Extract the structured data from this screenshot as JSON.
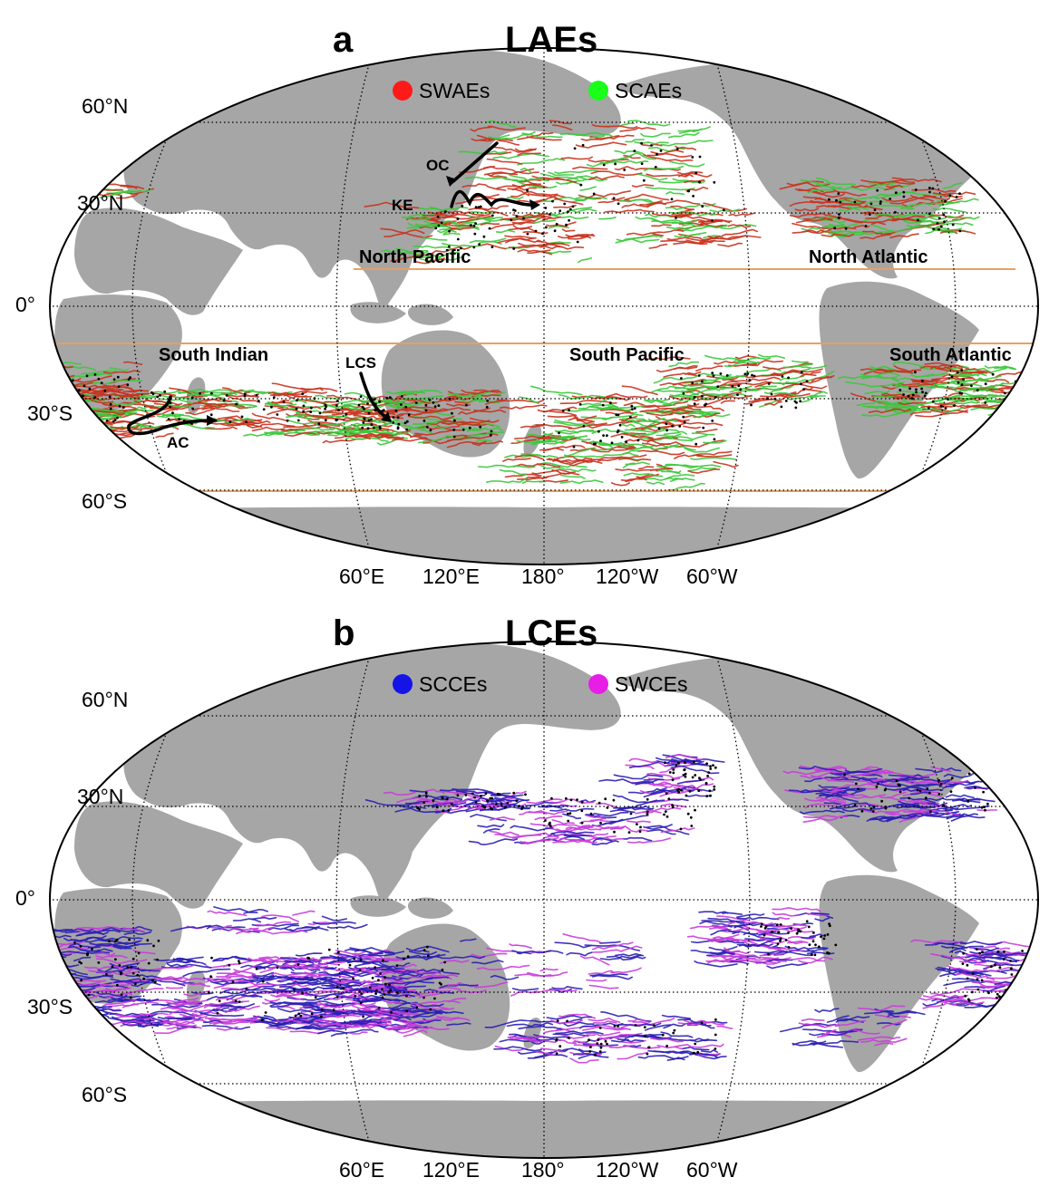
{
  "panels": [
    {
      "letter": "a",
      "title": "LAEs",
      "legend": [
        {
          "label": "SWAEs",
          "color": "#ff1a1a"
        },
        {
          "label": "SCAEs",
          "color": "#1aff1a"
        }
      ],
      "lat_labels": [
        "60°N",
        "30°N",
        "0°",
        "30°S",
        "60°S"
      ],
      "lon_labels": [
        "60°E",
        "120°E",
        "180°",
        "120°W",
        "60°W"
      ],
      "regions": [
        "North Pacific",
        "North Atlantic",
        "South Indian",
        "South Pacific",
        "South Atlantic"
      ],
      "currents": [
        "OC",
        "KE",
        "LCS",
        "AC"
      ],
      "track_colors": {
        "primary": "#c8321e",
        "secondary": "#3cc83c"
      }
    },
    {
      "letter": "b",
      "title": "LCEs",
      "legend": [
        {
          "label": "SCCEs",
          "color": "#1414e6"
        },
        {
          "label": "SWCEs",
          "color": "#e61ee6"
        }
      ],
      "lat_labels": [
        "60°N",
        "30°N",
        "0°",
        "30°S",
        "60°S"
      ],
      "lon_labels": [
        "60°E",
        "120°E",
        "180°",
        "120°W",
        "60°W"
      ],
      "track_colors": {
        "primary": "#2a1eb4",
        "secondary": "#c83cdc"
      }
    }
  ],
  "colors": {
    "land": "#a6a6a6",
    "ocean": "#ffffff",
    "boundary": "#e8a060",
    "grid": "#000000"
  }
}
